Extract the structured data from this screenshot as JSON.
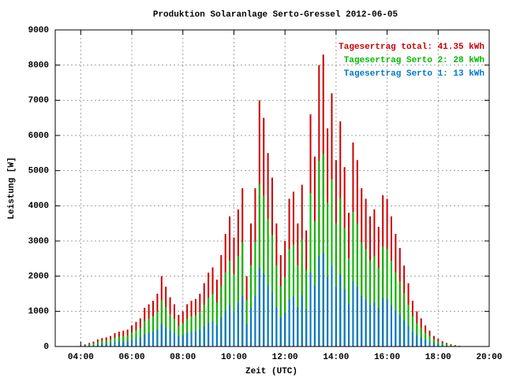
{
  "chart_data": {
    "type": "bar",
    "title": "Produktion Solaranlage Serto-Gressel 2012-06-05",
    "x_label": "Zeit (UTC)",
    "y_label": "Leistung [W]",
    "x": [
      240,
      250,
      260,
      270,
      280,
      290,
      300,
      310,
      320,
      330,
      340,
      350,
      360,
      370,
      380,
      390,
      400,
      410,
      420,
      430,
      440,
      450,
      460,
      470,
      480,
      490,
      500,
      510,
      520,
      530,
      540,
      550,
      560,
      570,
      580,
      590,
      600,
      610,
      620,
      630,
      640,
      650,
      660,
      670,
      680,
      690,
      700,
      710,
      720,
      730,
      740,
      750,
      760,
      770,
      780,
      790,
      800,
      810,
      820,
      830,
      840,
      850,
      860,
      870,
      880,
      890,
      900,
      910,
      920,
      930,
      940,
      950,
      960,
      970,
      980,
      990,
      1000,
      1010,
      1020,
      1030,
      1040,
      1050,
      1060,
      1070,
      1080,
      1090,
      1100,
      1110,
      1120,
      1130,
      1140
    ],
    "series": [
      {
        "name": "Tagesertrag total: 41.35 kWh",
        "color": "#cc0000",
        "values": [
          30,
          60,
          100,
          140,
          200,
          240,
          260,
          300,
          380,
          420,
          450,
          480,
          600,
          700,
          800,
          1100,
          1200,
          1300,
          1500,
          2000,
          1700,
          1400,
          1200,
          900,
          1000,
          1200,
          1300,
          1350,
          1500,
          1800,
          2100,
          2250,
          1900,
          2600,
          3200,
          3700,
          3100,
          3900,
          4500,
          2000,
          3500,
          4500,
          7000,
          6500,
          5500,
          4800,
          3500,
          2600,
          3000,
          4200,
          4400,
          3500,
          4600,
          3300,
          6600,
          5400,
          8000,
          8300,
          6200,
          7200,
          5300,
          6400,
          5100,
          3800,
          5800,
          5300,
          4500,
          4200,
          3700,
          3900,
          3400,
          4300,
          4200,
          3700,
          3200,
          2800,
          2300,
          1800,
          1300,
          1000,
          800,
          600,
          450,
          300,
          220,
          150,
          100,
          70,
          40,
          20,
          10
        ]
      },
      {
        "name": "Tagesertrag Serto 2: 28 kWh",
        "color": "#00bb00",
        "values": [
          20,
          40,
          70,
          90,
          130,
          160,
          170,
          200,
          250,
          280,
          300,
          320,
          400,
          460,
          530,
          730,
          790,
          860,
          990,
          1320,
          1120,
          920,
          790,
          590,
          660,
          790,
          860,
          890,
          990,
          1190,
          1390,
          1490,
          1250,
          1720,
          2110,
          2440,
          2050,
          2570,
          2970,
          1320,
          2310,
          2970,
          4620,
          4290,
          3630,
          3170,
          2310,
          1720,
          1980,
          2770,
          2900,
          2310,
          3040,
          2180,
          4360,
          3560,
          5280,
          5480,
          4090,
          4750,
          3500,
          4220,
          3370,
          2510,
          3830,
          3500,
          2970,
          2770,
          2440,
          2570,
          2240,
          2840,
          2770,
          2440,
          2110,
          1850,
          1520,
          1190,
          860,
          660,
          530,
          400,
          300,
          200,
          150,
          100,
          70,
          50,
          30,
          10,
          10
        ]
      },
      {
        "name": "Tagesertrag Serto 1: 13 kWh",
        "color": "#0077cc",
        "values": [
          10,
          20,
          30,
          40,
          60,
          80,
          80,
          100,
          120,
          130,
          140,
          150,
          190,
          220,
          260,
          350,
          380,
          420,
          480,
          640,
          540,
          450,
          380,
          290,
          320,
          380,
          420,
          430,
          480,
          580,
          670,
          720,
          610,
          830,
          1020,
          1180,
          990,
          1250,
          1440,
          640,
          1120,
          1440,
          2240,
          2080,
          1760,
          1540,
          1120,
          830,
          960,
          1340,
          1410,
          1120,
          1470,
          1060,
          2110,
          1730,
          2560,
          2660,
          1980,
          2300,
          1700,
          2050,
          1630,
          1220,
          1860,
          1700,
          1440,
          1340,
          1180,
          1250,
          1090,
          1380,
          1340,
          1180,
          1020,
          900,
          740,
          580,
          420,
          320,
          260,
          190,
          140,
          100,
          70,
          50,
          30,
          20,
          10,
          10,
          0
        ]
      }
    ],
    "xlim": [
      180,
      1200
    ],
    "xticks": [
      {
        "value": 240,
        "label": "04:00"
      },
      {
        "value": 360,
        "label": "06:00"
      },
      {
        "value": 480,
        "label": "08:00"
      },
      {
        "value": 600,
        "label": "10:00"
      },
      {
        "value": 720,
        "label": "12:00"
      },
      {
        "value": 840,
        "label": "14:00"
      },
      {
        "value": 960,
        "label": "16:00"
      },
      {
        "value": 1080,
        "label": "18:00"
      },
      {
        "value": 1200,
        "label": "20:00"
      }
    ],
    "ylim": [
      0,
      9000
    ],
    "yticks": [
      0,
      1000,
      2000,
      3000,
      4000,
      5000,
      6000,
      7000,
      8000,
      9000
    ],
    "grid": true,
    "legend": "top-right"
  }
}
